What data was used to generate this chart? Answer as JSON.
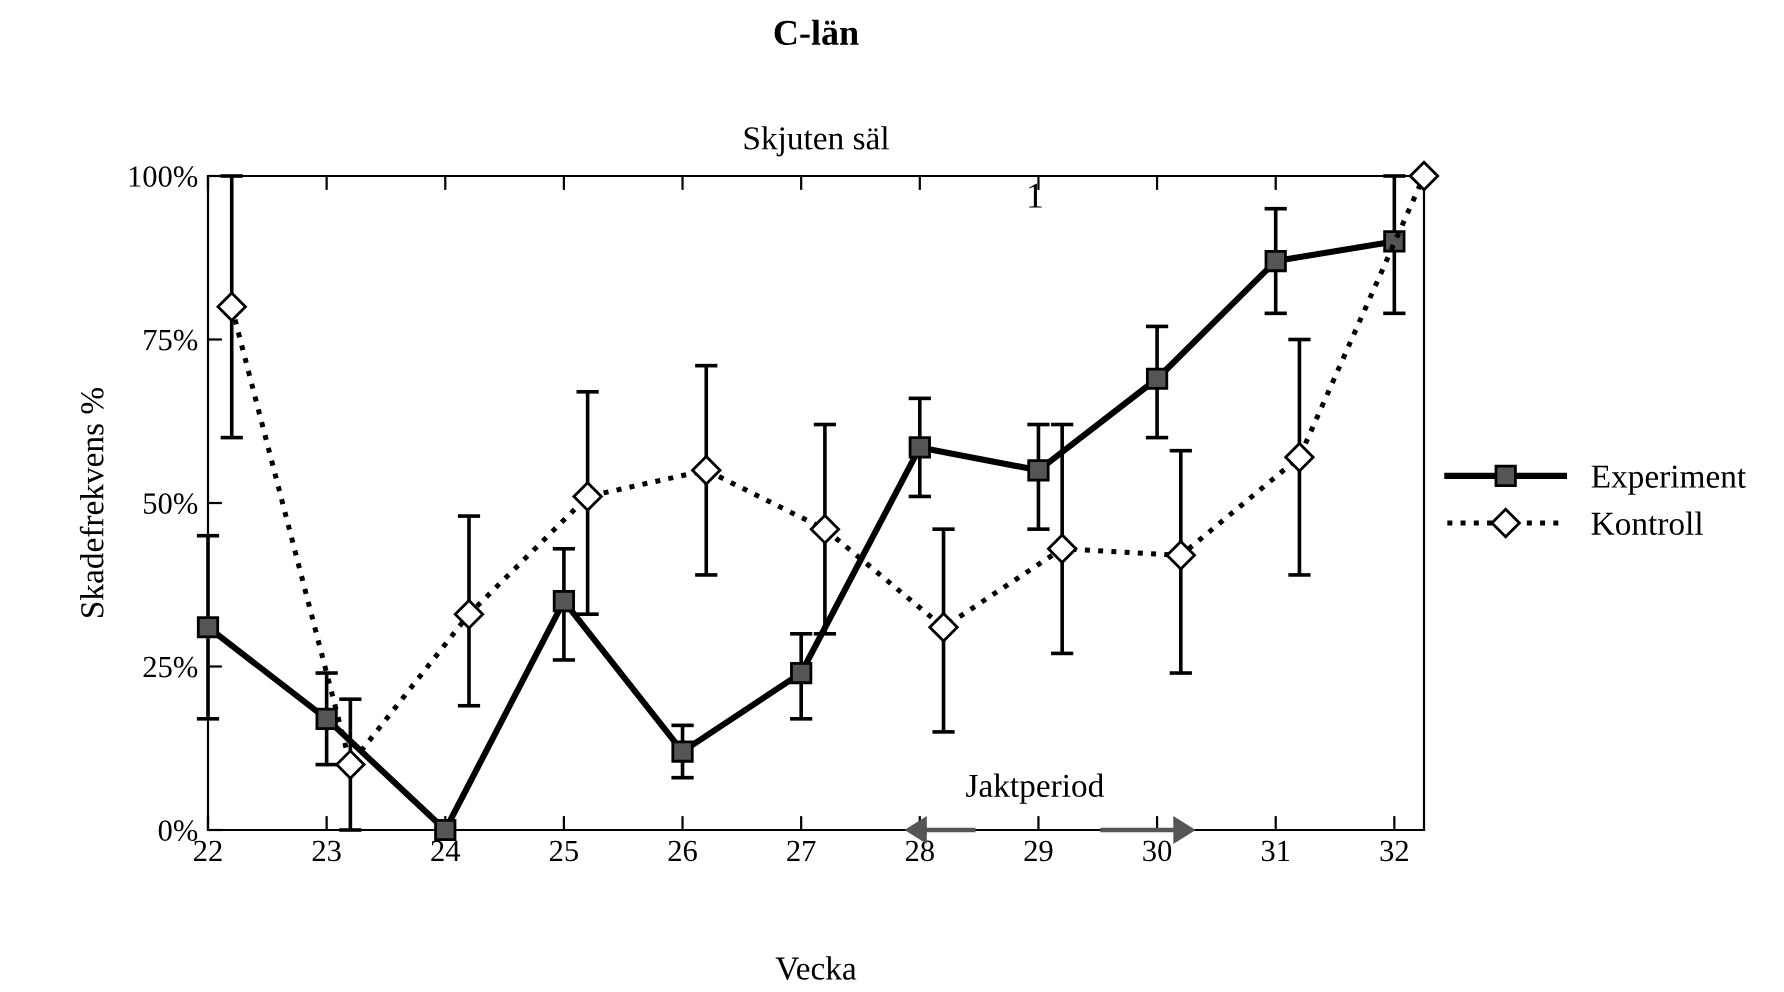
{
  "chart_data": {
    "type": "line",
    "title": "C-län",
    "xlabel": "Vecka",
    "ylabel": "Skadefrekvens %",
    "xlim": [
      22,
      32.25
    ],
    "xticks": [
      22,
      23,
      24,
      25,
      26,
      27,
      28,
      29,
      30,
      31,
      32
    ],
    "ylim": [
      0,
      100
    ],
    "yticks": [
      {
        "value": 0,
        "label": "0%"
      },
      {
        "value": 25,
        "label": "25%"
      },
      {
        "value": 50,
        "label": "50%"
      },
      {
        "value": 75,
        "label": "75%"
      },
      {
        "value": 100,
        "label": "100%"
      }
    ],
    "grid": false,
    "legend": "right",
    "series": [
      {
        "name": "Experiment",
        "color": "#000000",
        "marker": "square",
        "line_style": "solid",
        "x": [
          22,
          23,
          24,
          25,
          26,
          27,
          28,
          29,
          30,
          31,
          32
        ],
        "values": [
          31,
          17,
          0,
          35,
          12,
          24,
          58.5,
          55,
          69,
          87,
          90
        ],
        "errors": [
          [
            17,
            45
          ],
          [
            10,
            24
          ],
          null,
          [
            26,
            43
          ],
          [
            8,
            16
          ],
          [
            17,
            30
          ],
          [
            51,
            66
          ],
          [
            46,
            62
          ],
          [
            60,
            77
          ],
          [
            79,
            95
          ],
          [
            79,
            100
          ]
        ]
      },
      {
        "name": "Kontroll",
        "color": "#000000",
        "marker": "diamond",
        "line_style": "dotted",
        "x": [
          22.2,
          23.2,
          24.2,
          25.2,
          26.2,
          27.2,
          28.2,
          29.2,
          30.2,
          31.2,
          32.25
        ],
        "values": [
          80,
          10,
          33,
          51,
          55,
          46,
          31,
          43,
          42,
          57,
          100
        ],
        "errors": [
          [
            60,
            100
          ],
          [
            0,
            20
          ],
          [
            19,
            48
          ],
          [
            33,
            67
          ],
          [
            39,
            71
          ],
          [
            30,
            62
          ],
          [
            15,
            46
          ],
          [
            27,
            62
          ],
          [
            24,
            58
          ],
          [
            39,
            75
          ],
          null
        ]
      }
    ],
    "annotations": [
      "Skjuten säl",
      "1",
      "Jaktperiod"
    ]
  }
}
